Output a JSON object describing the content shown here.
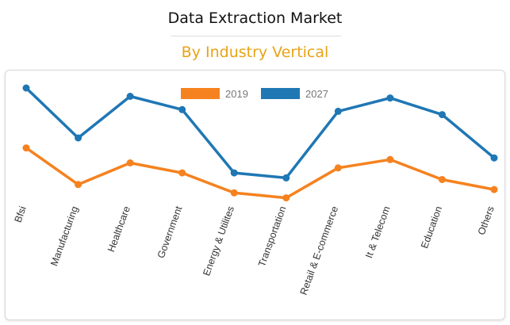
{
  "header": {
    "title": "Data Extraction Market",
    "subtitle": "By Industry Vertical"
  },
  "chart_data": {
    "type": "line",
    "categories": [
      "Bfsi",
      "Manufacturing",
      "Healthcare",
      "Government",
      "Energy & Utilites",
      "Transportation",
      "Retail & E-commerce",
      "It & Telecom",
      "Education",
      "Others"
    ],
    "series": [
      {
        "name": "2019",
        "color": "#f5821f",
        "values": [
          5.4,
          3.2,
          4.5,
          3.9,
          2.7,
          2.4,
          4.2,
          4.7,
          3.5,
          2.9
        ]
      },
      {
        "name": "2027",
        "color": "#1f77b4",
        "values": [
          9.0,
          6.0,
          8.5,
          7.7,
          3.9,
          3.6,
          7.6,
          8.4,
          7.4,
          4.8
        ]
      }
    ],
    "title": "Data Extraction Market",
    "subtitle": "By Industry Vertical",
    "xlabel": "",
    "ylabel": "",
    "ylim": [
      0,
      10
    ],
    "grid": false,
    "legend": "top-center"
  }
}
